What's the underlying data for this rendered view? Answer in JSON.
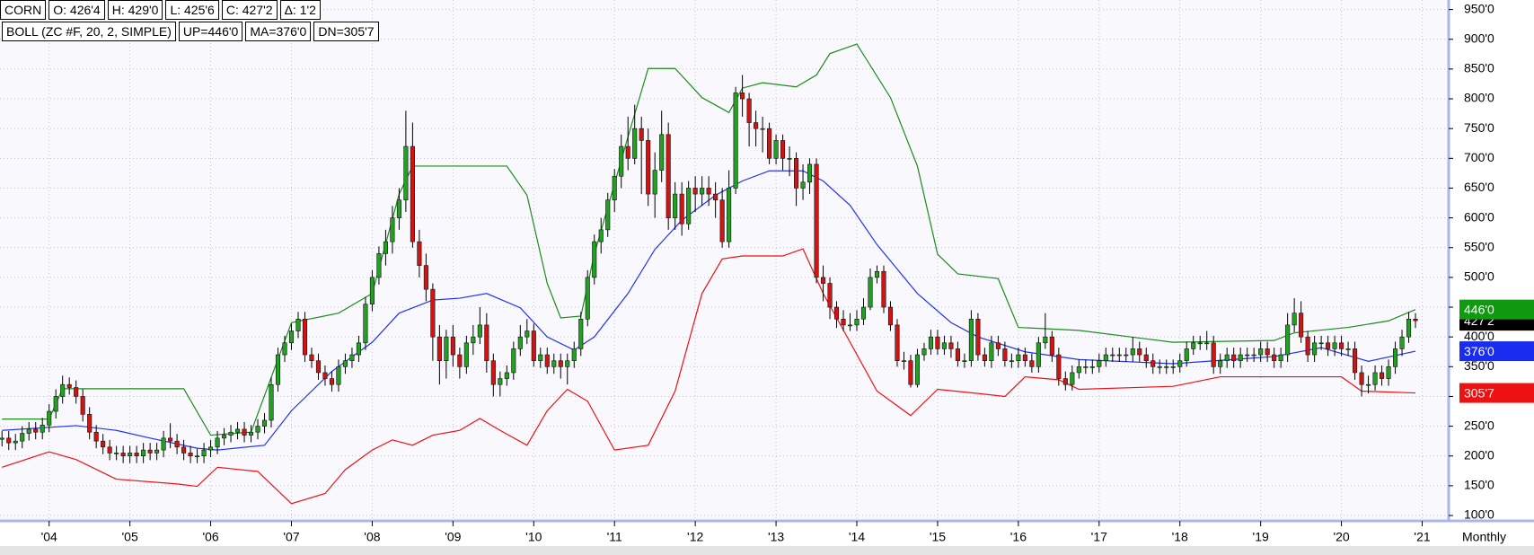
{
  "header": {
    "quote": [
      "CORN",
      "O: 426'4",
      "H: 429'0",
      "L: 425'6",
      "C: 427'2",
      "Δ: 1'2"
    ],
    "study": [
      "BOLL (ZC #F, 20, 2, SIMPLE)",
      "UP=446'0",
      "MA=376'0",
      "DN=305'7"
    ]
  },
  "chart_data": {
    "type": "candlestick",
    "interval_label": "Monthly",
    "up_color": "#22a022",
    "down_color": "#d01414",
    "grid": true,
    "xlim": [
      -0.3,
      214.8
    ],
    "xticks": [
      {
        "value": 7,
        "label": "'04"
      },
      {
        "value": 19,
        "label": "'05"
      },
      {
        "value": 31,
        "label": "'06"
      },
      {
        "value": 43,
        "label": "'07"
      },
      {
        "value": 55,
        "label": "'08"
      },
      {
        "value": 67,
        "label": "'09"
      },
      {
        "value": 79,
        "label": "'10"
      },
      {
        "value": 91,
        "label": "'11"
      },
      {
        "value": 103,
        "label": "'12"
      },
      {
        "value": 115,
        "label": "'13"
      },
      {
        "value": 127,
        "label": "'14"
      },
      {
        "value": 139,
        "label": "'15"
      },
      {
        "value": 151,
        "label": "'16"
      },
      {
        "value": 163,
        "label": "'17"
      },
      {
        "value": 175,
        "label": "'18"
      },
      {
        "value": 187,
        "label": "'19"
      },
      {
        "value": 199,
        "label": "'20"
      },
      {
        "value": 211,
        "label": "'21"
      }
    ],
    "ylim": [
      94,
      966
    ],
    "yticks": [
      {
        "value": 950,
        "label": "950'0"
      },
      {
        "value": 900,
        "label": "900'0"
      },
      {
        "value": 850,
        "label": "850'0"
      },
      {
        "value": 800,
        "label": "800'0"
      },
      {
        "value": 750,
        "label": "750'0"
      },
      {
        "value": 700,
        "label": "700'0"
      },
      {
        "value": 650,
        "label": "650'0"
      },
      {
        "value": 600,
        "label": "600'0"
      },
      {
        "value": 550,
        "label": "550'0"
      },
      {
        "value": 500,
        "label": "500'0"
      },
      {
        "value": 450,
        "label": "450'0"
      },
      {
        "value": 400,
        "label": "400'0"
      },
      {
        "value": 350,
        "label": "350'0"
      },
      {
        "value": 300,
        "label": "300'0"
      },
      {
        "value": 250,
        "label": "250'0"
      },
      {
        "value": 200,
        "label": "200'0"
      },
      {
        "value": 150,
        "label": "150'0"
      },
      {
        "value": 100,
        "label": "100'0"
      }
    ],
    "open": [
      228,
      230,
      222,
      225,
      238,
      245,
      240,
      252,
      275,
      300,
      320,
      315,
      300,
      270,
      240,
      225,
      215,
      205,
      205,
      200,
      205,
      200,
      210,
      205,
      210,
      230,
      225,
      215,
      205,
      200,
      200,
      210,
      215,
      230,
      235,
      240,
      245,
      235,
      240,
      250,
      260,
      320,
      370,
      390,
      410,
      430,
      370,
      360,
      340,
      330,
      320,
      350,
      360,
      370,
      390,
      455,
      500,
      540,
      560,
      600,
      630,
      720,
      560,
      520,
      480,
      400,
      360,
      400,
      370,
      350,
      390,
      400,
      420,
      360,
      320,
      330,
      340,
      380,
      400,
      410,
      360,
      370,
      350,
      360,
      350,
      360,
      380,
      430,
      500,
      560,
      580,
      630,
      670,
      720,
      700,
      750,
      730,
      640,
      680,
      740,
      600,
      640,
      590,
      650,
      640,
      650,
      640,
      630,
      560,
      650,
      810,
      800,
      760,
      750,
      750,
      700,
      730,
      700,
      700,
      650,
      660,
      690,
      500,
      490,
      450,
      430,
      420,
      420,
      430,
      450,
      500,
      510,
      450,
      420,
      360,
      360,
      320,
      370,
      380,
      400,
      380,
      390,
      380,
      360,
      360,
      430,
      370,
      360,
      390,
      380,
      360,
      360,
      370,
      360,
      350,
      390,
      400,
      370,
      330,
      320,
      340,
      350,
      350,
      350,
      360,
      370,
      370,
      370,
      370,
      380,
      370,
      360,
      350,
      350,
      350,
      350,
      360,
      380,
      390,
      390,
      390,
      350,
      360,
      370,
      360,
      370,
      370,
      370,
      380,
      370,
      360,
      370,
      420,
      440,
      400,
      370,
      390,
      390,
      380,
      390,
      380,
      380,
      340,
      320,
      320,
      340,
      330,
      350,
      380,
      400,
      430
    ],
    "high": [
      242,
      242,
      237,
      250,
      257,
      257,
      264,
      287,
      312,
      335,
      332,
      327,
      312,
      282,
      252,
      237,
      227,
      217,
      217,
      217,
      217,
      222,
      222,
      222,
      242,
      255,
      237,
      227,
      217,
      212,
      222,
      227,
      242,
      247,
      252,
      257,
      257,
      252,
      262,
      272,
      332,
      382,
      402,
      422,
      442,
      442,
      382,
      372,
      352,
      342,
      362,
      372,
      382,
      402,
      467,
      512,
      552,
      580,
      620,
      650,
      780,
      760,
      580,
      540,
      490,
      420,
      412,
      420,
      382,
      402,
      420,
      450,
      440,
      372,
      342,
      352,
      392,
      420,
      430,
      422,
      382,
      382,
      372,
      372,
      372,
      392,
      442,
      512,
      572,
      600,
      642,
      682,
      740,
      770,
      790,
      770,
      750,
      710,
      780,
      760,
      660,
      660,
      662,
      670,
      670,
      670,
      660,
      650,
      680,
      820,
      840,
      810,
      780,
      770,
      760,
      740,
      740,
      720,
      710,
      690,
      700,
      700,
      520,
      500,
      460,
      445,
      440,
      445,
      465,
      515,
      520,
      520,
      460,
      430,
      375,
      370,
      380,
      390,
      412,
      412,
      402,
      402,
      392,
      372,
      445,
      440,
      382,
      402,
      402,
      392,
      372,
      382,
      382,
      372,
      400,
      440,
      410,
      382,
      342,
      352,
      362,
      362,
      362,
      372,
      382,
      382,
      382,
      382,
      400,
      392,
      382,
      372,
      362,
      362,
      362,
      372,
      392,
      402,
      402,
      410,
      402,
      372,
      382,
      382,
      382,
      382,
      382,
      392,
      392,
      382,
      382,
      440,
      465,
      460,
      410,
      402,
      402,
      402,
      402,
      402,
      392,
      392,
      352,
      335,
      352,
      352,
      362,
      392,
      412,
      442,
      440
    ],
    "low": [
      216,
      210,
      210,
      213,
      226,
      228,
      228,
      240,
      263,
      288,
      303,
      288,
      258,
      228,
      213,
      203,
      193,
      193,
      188,
      188,
      188,
      188,
      193,
      193,
      198,
      213,
      203,
      193,
      188,
      188,
      188,
      198,
      203,
      218,
      223,
      228,
      223,
      223,
      228,
      238,
      248,
      308,
      358,
      378,
      398,
      358,
      348,
      328,
      318,
      308,
      308,
      338,
      348,
      358,
      378,
      443,
      488,
      520,
      540,
      580,
      610,
      550,
      500,
      460,
      360,
      320,
      330,
      350,
      330,
      338,
      370,
      388,
      340,
      300,
      300,
      318,
      328,
      368,
      388,
      350,
      348,
      338,
      338,
      330,
      320,
      348,
      368,
      418,
      488,
      540,
      568,
      610,
      650,
      680,
      690,
      640,
      620,
      600,
      660,
      580,
      580,
      570,
      580,
      610,
      620,
      620,
      600,
      550,
      550,
      640,
      770,
      720,
      720,
      710,
      690,
      690,
      680,
      670,
      620,
      630,
      640,
      490,
      460,
      430,
      415,
      410,
      410,
      410,
      420,
      445,
      490,
      440,
      410,
      350,
      345,
      315,
      315,
      360,
      370,
      370,
      370,
      365,
      350,
      348,
      350,
      360,
      350,
      348,
      368,
      350,
      348,
      348,
      350,
      340,
      340,
      380,
      358,
      318,
      310,
      310,
      330,
      338,
      338,
      340,
      350,
      358,
      358,
      358,
      358,
      358,
      348,
      338,
      338,
      338,
      338,
      340,
      350,
      370,
      378,
      378,
      338,
      338,
      348,
      348,
      348,
      358,
      358,
      358,
      358,
      348,
      348,
      358,
      408,
      390,
      358,
      358,
      378,
      368,
      368,
      368,
      368,
      328,
      300,
      305,
      310,
      318,
      318,
      338,
      368,
      390,
      415
    ],
    "close": [
      230,
      222,
      225,
      238,
      245,
      240,
      252,
      275,
      300,
      320,
      315,
      300,
      270,
      240,
      225,
      215,
      205,
      205,
      200,
      205,
      200,
      210,
      205,
      210,
      230,
      225,
      215,
      205,
      200,
      200,
      210,
      215,
      230,
      235,
      240,
      245,
      235,
      240,
      250,
      260,
      320,
      370,
      390,
      410,
      430,
      370,
      360,
      340,
      330,
      320,
      350,
      360,
      370,
      390,
      455,
      500,
      540,
      560,
      600,
      630,
      720,
      560,
      520,
      480,
      400,
      360,
      400,
      370,
      350,
      390,
      400,
      420,
      360,
      320,
      330,
      340,
      380,
      400,
      410,
      360,
      370,
      350,
      360,
      350,
      360,
      380,
      430,
      500,
      560,
      580,
      630,
      670,
      720,
      700,
      750,
      730,
      640,
      680,
      740,
      600,
      640,
      590,
      650,
      640,
      650,
      640,
      630,
      560,
      650,
      810,
      800,
      760,
      750,
      750,
      700,
      730,
      700,
      700,
      650,
      660,
      690,
      500,
      490,
      450,
      430,
      420,
      420,
      430,
      450,
      500,
      510,
      450,
      420,
      360,
      360,
      320,
      370,
      380,
      400,
      380,
      390,
      380,
      360,
      360,
      430,
      370,
      360,
      390,
      380,
      360,
      360,
      370,
      360,
      350,
      390,
      400,
      370,
      330,
      320,
      340,
      350,
      350,
      350,
      360,
      370,
      370,
      370,
      370,
      380,
      370,
      360,
      350,
      350,
      350,
      350,
      360,
      380,
      390,
      390,
      390,
      350,
      360,
      370,
      360,
      370,
      370,
      370,
      380,
      370,
      360,
      370,
      420,
      440,
      400,
      370,
      390,
      390,
      380,
      390,
      380,
      380,
      340,
      320,
      320,
      340,
      330,
      350,
      380,
      400,
      430,
      427.25
    ],
    "series": [
      {
        "color": "#1b8c1b",
        "x": [
          0,
          7,
          9,
          27,
          31,
          37,
          43,
          50,
          55,
          59,
          61,
          75,
          78,
          81,
          83,
          86,
          88,
          93,
          96,
          100,
          104,
          108,
          110,
          113,
          118,
          121,
          123,
          127,
          132,
          136,
          139,
          142,
          148,
          151,
          160,
          174,
          189,
          192,
          200,
          206,
          210
        ],
        "values": [
          262,
          262,
          313,
          313,
          235,
          240,
          424,
          440,
          473,
          640,
          687,
          687,
          638,
          490,
          432,
          435,
          539,
          736,
          851,
          851,
          802,
          777,
          818,
          827,
          820,
          840,
          876,
          892,
          802,
          687,
          539,
          506,
          498,
          416,
          411,
          391,
          394,
          407,
          416,
          427,
          446
        ]
      },
      {
        "color": "#2233ee",
        "x": [
          0,
          11,
          17,
          22,
          29,
          32,
          39,
          43,
          49,
          55,
          59,
          64,
          68,
          72,
          77,
          81,
          85,
          88,
          93,
          97,
          101,
          106,
          110,
          114,
          119,
          122,
          126,
          130,
          136,
          141,
          145,
          152,
          160,
          174,
          189,
          196,
          203,
          210
        ],
        "values": [
          243,
          251,
          243,
          230,
          213,
          210,
          218,
          276,
          342,
          391,
          440,
          462,
          465,
          473,
          449,
          400,
          378,
          400,
          473,
          547,
          596,
          638,
          662,
          679,
          679,
          662,
          621,
          555,
          473,
          424,
          400,
          375,
          362,
          355,
          367,
          382,
          359,
          376
        ]
      },
      {
        "color": "#ee1111",
        "x": [
          0,
          7,
          11,
          17,
          26,
          29,
          32,
          38,
          43,
          48,
          51,
          55,
          58,
          61,
          64,
          68,
          71,
          74,
          78,
          81,
          84,
          87,
          91,
          96,
          100,
          104,
          107,
          110,
          116,
          119,
          122,
          126,
          130,
          135,
          139,
          145,
          149,
          152,
          157,
          160,
          174,
          181,
          199,
          202,
          210
        ],
        "values": [
          181,
          207,
          194,
          161,
          153,
          149,
          181,
          174,
          120,
          137,
          177,
          210,
          227,
          218,
          235,
          243,
          263,
          243,
          218,
          276,
          312,
          292,
          210,
          218,
          309,
          473,
          531,
          536,
          536,
          548,
          473,
          391,
          309,
          268,
          312,
          305,
          300,
          333,
          328,
          312,
          317,
          333,
          333,
          309,
          305.875
        ]
      }
    ],
    "price_markers": [
      {
        "value": 427.25,
        "label": "427'2",
        "color": "#000000"
      },
      {
        "value": 446,
        "label": "446'0",
        "color": "#119911"
      },
      {
        "value": 376,
        "label": "376'0",
        "color": "#1a2cf0"
      },
      {
        "value": 305.875,
        "label": "305'7",
        "color": "#ee1111"
      }
    ]
  }
}
